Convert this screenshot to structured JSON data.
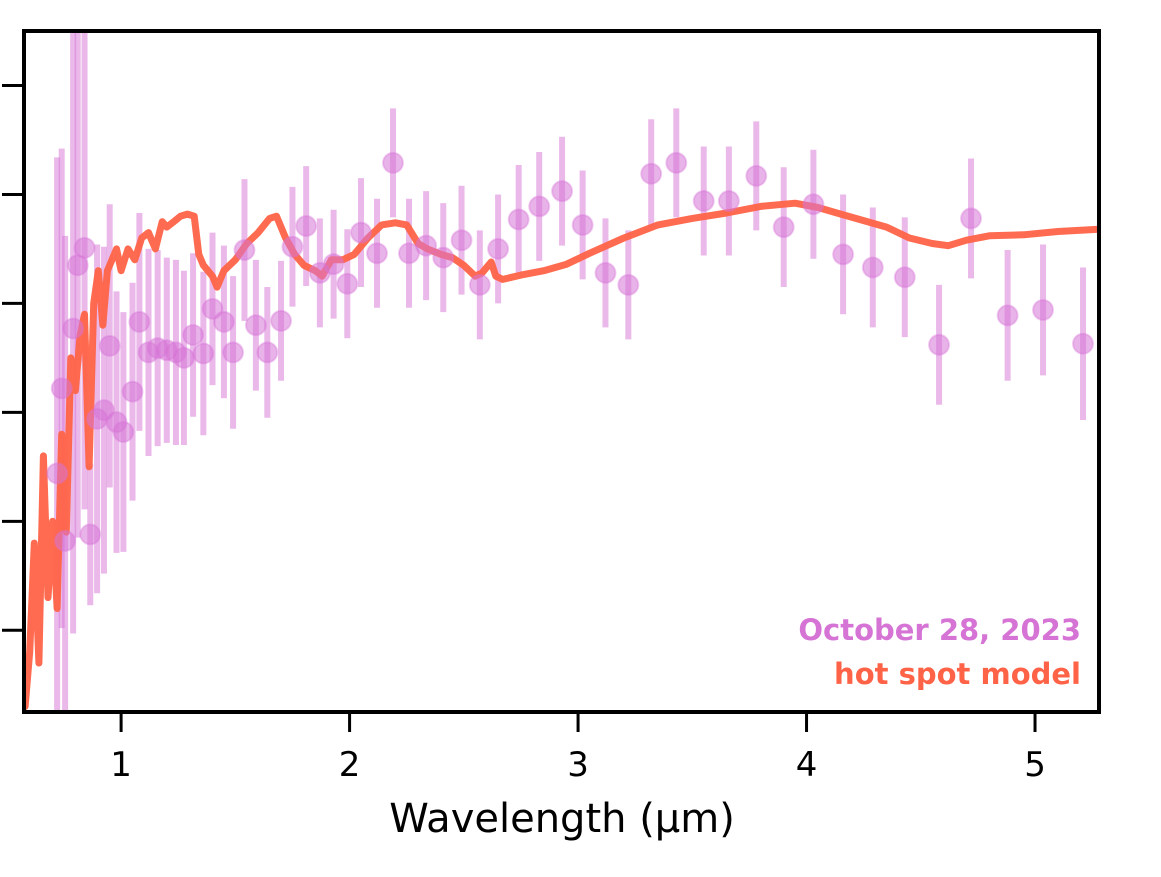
{
  "chart_data": {
    "type": "scatter",
    "title": "",
    "xlabel": "Wavelength (μm)",
    "ylabel": "",
    "xlim": [
      0.575,
      5.28
    ],
    "ylim": [
      -0.75,
      5.5
    ],
    "xticks": [
      1,
      2,
      3,
      4,
      5
    ],
    "xtick_labels": [
      "1",
      "2",
      "3",
      "4",
      "5"
    ],
    "yticks": [
      0,
      1,
      2,
      3,
      4,
      5
    ],
    "ytick_labels": [
      "",
      "",
      "",
      "",
      "",
      ""
    ],
    "grid": false,
    "annotations": [
      {
        "text": "October 28, 2023",
        "color": "#d674d6",
        "placement": "bottom-right"
      },
      {
        "text": "hot spot model",
        "color": "#ff6347",
        "placement": "bottom-right"
      }
    ],
    "series": [
      {
        "name": "October 28, 2023",
        "kind": "errorbar-points",
        "color": "#d674d6",
        "x": [
          0.72,
          0.74,
          0.755,
          0.79,
          0.81,
          0.84,
          0.865,
          0.895,
          0.925,
          0.95,
          0.98,
          1.01,
          1.05,
          1.08,
          1.12,
          1.16,
          1.2,
          1.24,
          1.275,
          1.315,
          1.36,
          1.4,
          1.45,
          1.49,
          1.54,
          1.59,
          1.64,
          1.7,
          1.75,
          1.81,
          1.87,
          1.93,
          1.99,
          2.05,
          2.12,
          2.19,
          2.26,
          2.335,
          2.41,
          2.49,
          2.57,
          2.65,
          2.74,
          2.83,
          2.93,
          3.02,
          3.12,
          3.22,
          3.32,
          3.43,
          3.55,
          3.66,
          3.78,
          3.9,
          4.03,
          4.16,
          4.29,
          4.43,
          4.58,
          4.72,
          4.88,
          5.035,
          5.21
        ],
        "y": [
          1.44,
          2.22,
          0.82,
          2.77,
          3.35,
          3.51,
          0.88,
          1.94,
          2.02,
          2.61,
          1.91,
          1.82,
          2.19,
          2.83,
          2.55,
          2.59,
          2.57,
          2.55,
          2.5,
          2.71,
          2.54,
          2.95,
          2.83,
          2.55,
          3.49,
          2.8,
          2.55,
          2.84,
          3.52,
          3.71,
          3.28,
          3.36,
          3.18,
          3.65,
          3.46,
          4.29,
          3.46,
          3.53,
          3.42,
          3.58,
          3.17,
          3.5,
          3.77,
          3.89,
          4.03,
          3.72,
          3.28,
          3.17,
          4.19,
          4.29,
          3.94,
          3.94,
          4.17,
          3.7,
          3.91,
          3.45,
          3.33,
          3.24,
          2.62,
          3.78,
          2.89,
          2.94,
          2.63
        ],
        "yerr": [
          2.9,
          2.2,
          2.8,
          2.8,
          2.5,
          2.4,
          0.65,
          1.6,
          1.5,
          1.3,
          1.2,
          1.1,
          1.0,
          1.0,
          0.95,
          0.9,
          0.85,
          0.85,
          0.8,
          0.75,
          0.75,
          0.7,
          0.7,
          0.7,
          0.65,
          0.6,
          0.6,
          0.55,
          0.55,
          0.55,
          0.5,
          0.5,
          0.5,
          0.5,
          0.5,
          0.5,
          0.5,
          0.5,
          0.5,
          0.5,
          0.5,
          0.5,
          0.5,
          0.5,
          0.5,
          0.5,
          0.5,
          0.5,
          0.5,
          0.5,
          0.5,
          0.5,
          0.5,
          0.55,
          0.5,
          0.55,
          0.55,
          0.55,
          0.55,
          0.55,
          0.6,
          0.6,
          0.7
        ]
      },
      {
        "name": "hot spot model",
        "kind": "line",
        "color": "#ff6347",
        "x": [
          0.58,
          0.6,
          0.62,
          0.64,
          0.66,
          0.68,
          0.7,
          0.72,
          0.74,
          0.76,
          0.78,
          0.8,
          0.82,
          0.84,
          0.86,
          0.88,
          0.9,
          0.92,
          0.94,
          0.96,
          0.98,
          1.0,
          1.03,
          1.06,
          1.09,
          1.12,
          1.15,
          1.18,
          1.2,
          1.23,
          1.26,
          1.29,
          1.32,
          1.34,
          1.36,
          1.4,
          1.42,
          1.45,
          1.5,
          1.55,
          1.6,
          1.65,
          1.68,
          1.72,
          1.76,
          1.8,
          1.85,
          1.88,
          1.92,
          1.97,
          2.02,
          2.08,
          2.14,
          2.2,
          2.25,
          2.3,
          2.34,
          2.4,
          2.45,
          2.5,
          2.55,
          2.58,
          2.62,
          2.64,
          2.67,
          2.75,
          2.85,
          2.95,
          3.05,
          3.2,
          3.35,
          3.5,
          3.65,
          3.8,
          3.95,
          4.05,
          4.15,
          4.25,
          4.35,
          4.45,
          4.55,
          4.62,
          4.7,
          4.8,
          4.95,
          5.1,
          5.28
        ],
        "y": [
          -0.7,
          -0.2,
          0.8,
          -0.3,
          1.6,
          0.3,
          1.0,
          0.2,
          1.8,
          0.9,
          2.5,
          2.2,
          2.7,
          2.9,
          1.5,
          3.0,
          3.3,
          2.8,
          3.3,
          3.4,
          3.5,
          3.3,
          3.5,
          3.4,
          3.6,
          3.65,
          3.5,
          3.75,
          3.7,
          3.75,
          3.8,
          3.82,
          3.8,
          3.45,
          3.35,
          3.25,
          3.15,
          3.3,
          3.4,
          3.55,
          3.65,
          3.78,
          3.8,
          3.6,
          3.45,
          3.35,
          3.3,
          3.25,
          3.4,
          3.4,
          3.45,
          3.6,
          3.72,
          3.74,
          3.72,
          3.55,
          3.5,
          3.45,
          3.42,
          3.35,
          3.25,
          3.28,
          3.38,
          3.25,
          3.22,
          3.26,
          3.3,
          3.36,
          3.46,
          3.6,
          3.72,
          3.78,
          3.83,
          3.89,
          3.92,
          3.88,
          3.82,
          3.76,
          3.7,
          3.6,
          3.55,
          3.53,
          3.58,
          3.62,
          3.63,
          3.66,
          3.68
        ]
      }
    ]
  }
}
